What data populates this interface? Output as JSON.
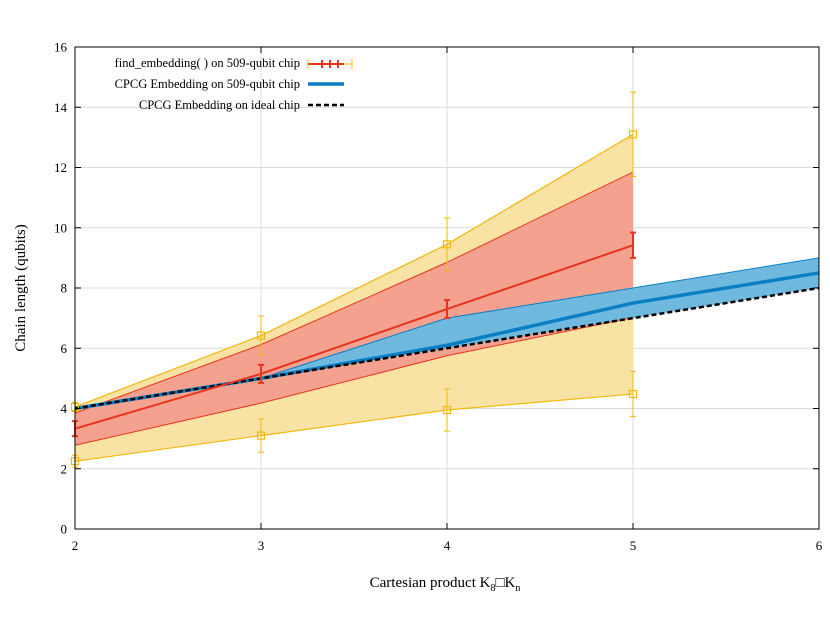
{
  "chart_data": {
    "type": "line",
    "title": "",
    "xlabel_prefix": "Cartesian product  K",
    "xlabel_sub1": "8",
    "xlabel_mid": "□K",
    "xlabel_sub2": "n",
    "ylabel": "Chain length (qubits)",
    "xlim": [
      2,
      6
    ],
    "ylim": [
      0,
      16
    ],
    "xticks": [
      2,
      3,
      4,
      5,
      6
    ],
    "yticks": [
      0,
      2,
      4,
      6,
      8,
      10,
      12,
      14,
      16
    ],
    "grid": true,
    "legend_position": "top-left",
    "series": [
      {
        "name": "find_embedding( ) on 509-qubit chip",
        "color": "#e8341c",
        "x": [
          2,
          3,
          4,
          5
        ],
        "mean": [
          3.33,
          5.15,
          7.3,
          9.42
        ],
        "err": [
          0.25,
          0.3,
          0.3,
          0.42
        ],
        "std_band_low": [
          2.78,
          4.18,
          5.75,
          7.02
        ],
        "std_band_high": [
          3.85,
          6.12,
          8.85,
          11.85
        ],
        "std_band_color": "#f4a28f",
        "minmax_low": [
          2.25,
          3.1,
          3.95,
          4.48
        ],
        "minmax_high": [
          4.05,
          6.42,
          9.45,
          13.1
        ],
        "minmax_low_err": [
          0.2,
          0.55,
          0.7,
          0.75
        ],
        "minmax_high_err": [
          0.15,
          0.65,
          0.88,
          1.4
        ],
        "minmax_color": "#f2b80d",
        "minmax_fill": "#f8e2a4"
      },
      {
        "name": "CPCG Embedding on 509-qubit chip",
        "color": "#0a7fc4",
        "x": [
          2,
          3,
          4,
          5,
          6
        ],
        "values": [
          4.0,
          5.0,
          6.1,
          7.5,
          8.5
        ],
        "band_low": [
          3.95,
          5.0,
          6.0,
          7.0,
          8.0
        ],
        "band_high": [
          4.0,
          5.0,
          7.0,
          8.0,
          9.0
        ],
        "band_color": "#70b9de"
      },
      {
        "name": "CPCG Embedding on ideal chip",
        "color": "#000000",
        "x": [
          2,
          3,
          4,
          5,
          6
        ],
        "values": [
          4.0,
          5.0,
          6.0,
          7.0,
          8.0
        ]
      }
    ]
  }
}
